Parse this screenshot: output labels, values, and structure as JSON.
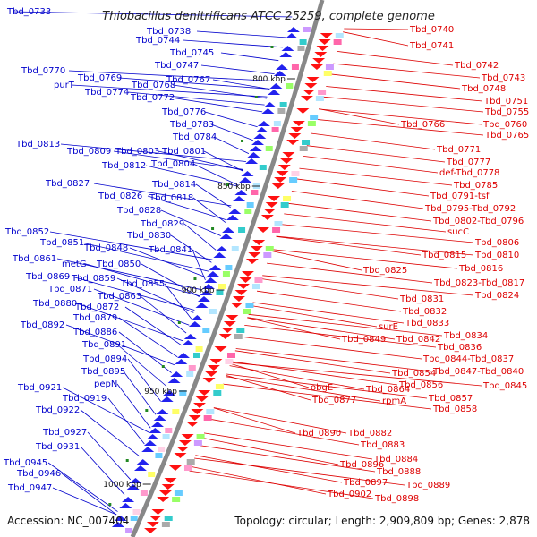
{
  "title": "Thiobacillus denitrificans ATCC 25259, complete genome",
  "footer": {
    "accession": "Accession: NC_007404",
    "topology": "Topology: circular; Length: 2,909,809 bp; Genes: 2,878"
  },
  "colors": {
    "left_labels": "#0000cc",
    "right_labels": "#dd0000",
    "backbone": "#808080"
  },
  "scale_labels": [
    "800 kbp",
    "850 kbp",
    "900 kbp",
    "950 kbp",
    "1000 kbp"
  ],
  "left_genes": [
    "Tbd_0733",
    "Tbd_0738",
    "Tbd_0744",
    "Tbd_0745",
    "Tbd_0747",
    "Tbd_0767",
    "Tbd_0770",
    "Tbd_0769",
    "purT",
    "Tbd_0774",
    "Tbd_0768",
    "Tbd_0772",
    "Tbd_0776",
    "Tbd_0783",
    "Tbd_0784",
    "Tbd_0813",
    "Tbd_0809",
    "Tbd_0803",
    "Tbd_0801",
    "Tbd_0812",
    "Tbd_0804",
    "Tbd_0827",
    "Tbd_0814",
    "Tbd_0826",
    "Tbd_0818",
    "Tbd_0828",
    "Tbd_0829",
    "Tbd_0830",
    "Tbd_0852",
    "Tbd_0851",
    "Tbd_0848",
    "Tbd_0841",
    "Tbd_0861",
    "metG",
    "Tbd_0850",
    "Tbd_0869",
    "Tbd_0859",
    "Tbd_0855",
    "Tbd_0871",
    "Tbd_0863",
    "Tbd_0880",
    "Tbd_0872",
    "Tbd_0879",
    "Tbd_0892",
    "Tbd_0886",
    "Tbd_0891",
    "Tbd_0894",
    "Tbd_0895",
    "pepN",
    "Tbd_0921",
    "Tbd_0919",
    "Tbd_0922",
    "Tbd_0927",
    "Tbd_0931",
    "Tbd_0945",
    "Tbd_0946",
    "Tbd_0947"
  ],
  "right_genes": [
    "Tbd_0740",
    "Tbd_0741",
    "Tbd_0742",
    "Tbd_0743",
    "Tbd_0748",
    "Tbd_0751",
    "Tbd_0755",
    "Tbd_0760",
    "Tbd_0766",
    "Tbd_0765",
    "Tbd_0771",
    "Tbd_0777",
    "def-Tbd_0778",
    "Tbd_0785",
    "Tbd_0791-tsf",
    "Tbd_0795-Tbd_0792",
    "Tbd_0802-Tbd_0796",
    "sucC",
    "Tbd_0806",
    "Tbd_0815",
    "Tbd_0810",
    "Tbd_0816",
    "Tbd_0825",
    "Tbd_0823-Tbd_0817",
    "Tbd_0824",
    "Tbd_0831",
    "Tbd_0832",
    "Tbd_0833",
    "surE",
    "Tbd_0834",
    "Tbd_0849",
    "Tbd_0842",
    "Tbd_0836",
    "Tbd_0844-Tbd_0837",
    "Tbd_0854",
    "Tbd_0847-Tbd_0840",
    "Tbd_0845",
    "Tbd_0856",
    "Tbd_0864",
    "obgE",
    "Tbd_0857",
    "rpmA",
    "Tbd_0877",
    "Tbd_0858",
    "Tbd_0890",
    "Tbd_0882",
    "Tbd_0883",
    "Tbd_0884",
    "Tbd_0888",
    "Tbd_0896",
    "Tbd_0889",
    "Tbd_0897",
    "Tbd_0902",
    "Tbd_0898"
  ]
}
